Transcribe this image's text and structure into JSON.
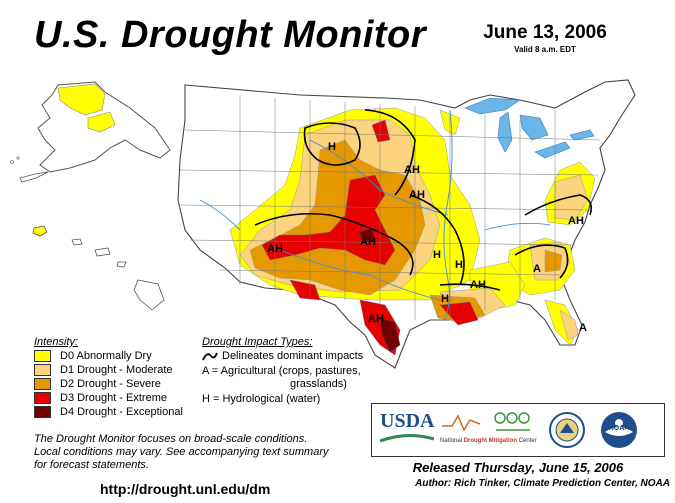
{
  "title": "U.S. Drought Monitor",
  "date": "June 13, 2006",
  "valid": "Valid 8 a.m. EDT",
  "legend": {
    "intensity_title": "Intensity:",
    "items": [
      {
        "label": "D0 Abnormally Dry",
        "color": "#ffff00"
      },
      {
        "label": "D1 Drought - Moderate",
        "color": "#fcd37f"
      },
      {
        "label": "D2 Drought - Severe",
        "color": "#e69800"
      },
      {
        "label": "D3 Drought - Extreme",
        "color": "#e60000"
      },
      {
        "label": "D4 Drought - Exceptional",
        "color": "#730000"
      }
    ],
    "impact_title": "Drought Impact Types:",
    "impact_delineates": "Delineates dominant impacts",
    "impact_a_line1": "A = Agricultural (crops, pastures,",
    "impact_a_line2": "grasslands)",
    "impact_h": "H = Hydrological (water)"
  },
  "note": {
    "line1": "The Drought Monitor focuses on broad-scale conditions.",
    "line2": "Local conditions may vary. See accompanying text summary",
    "line3": "for forecast statements."
  },
  "url": "http://drought.unl.edu/dm",
  "released": "Released Thursday, June 15, 2006",
  "author": "Author:  Rich Tinker, Climate Prediction Center, NOAA",
  "logos": {
    "usda": "USDA",
    "ndmc_word1": "National",
    "ndmc_word2": "Drought Mitigation",
    "ndmc_word3": "Center",
    "noaa": "NOAA"
  },
  "map_labels": {
    "h_north": "H",
    "ah_dakotas": "AH",
    "ah_midwest": "AH",
    "ah_southwest": "AH",
    "ah_plains": "AH",
    "h_central": "H",
    "h_mississippi": "H",
    "ah_lower_miss": "AH",
    "h_lower_miss": "H",
    "ah_gulf": "AH",
    "ah_virginia": "AH",
    "a_georgia": "A",
    "a_florida": "A"
  }
}
